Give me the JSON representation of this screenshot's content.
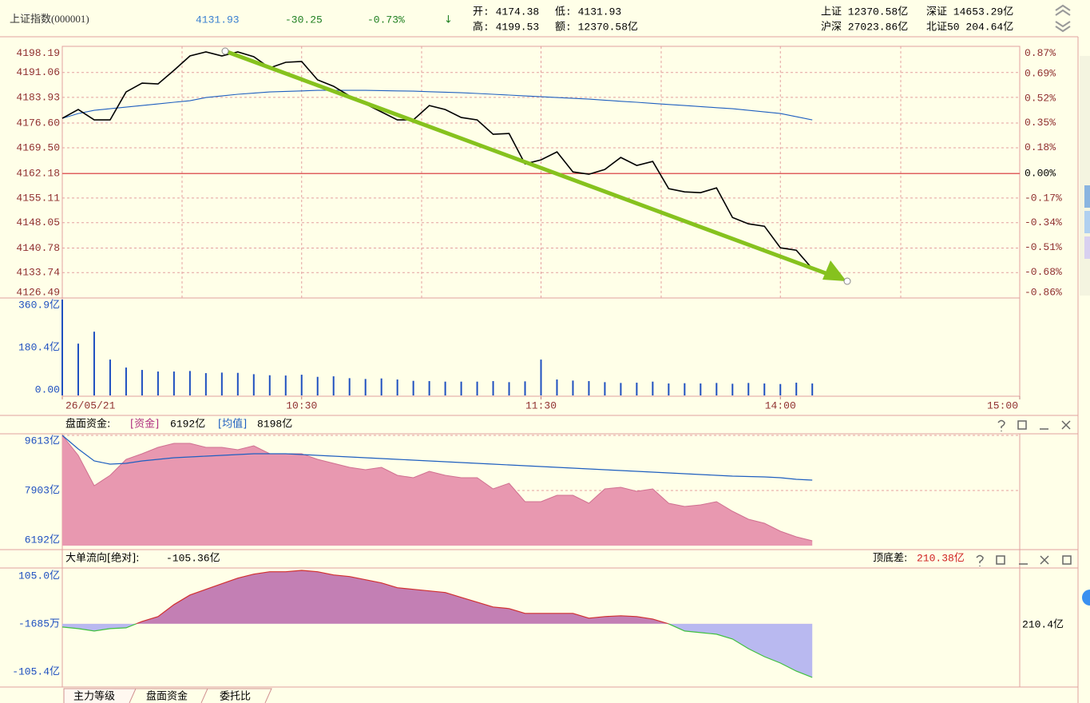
{
  "header": {
    "title": "上证指数(000001)",
    "price": "4131.93",
    "change": "-30.25",
    "change_pct": "-0.73%",
    "arrow": "↓",
    "open": "开: 4174.38",
    "low": "低: 4131.93",
    "high": "高: 4199.53",
    "amount": "额: 12370.58亿"
  },
  "market": [
    "上证 12370.58亿",
    "深证 14653.29亿",
    "沪深 27023.86亿",
    "北证50 204.64亿"
  ],
  "chart_data": [
    {
      "type": "line",
      "x": [
        "09:30",
        "09:34",
        "09:38",
        "09:42",
        "09:46",
        "09:50",
        "09:54",
        "09:58",
        "10:02",
        "10:06",
        "10:10",
        "10:14",
        "10:18",
        "10:22",
        "10:26",
        "10:30",
        "10:34",
        "10:38",
        "10:42",
        "10:46",
        "10:50",
        "10:54",
        "10:58",
        "11:02",
        "11:06",
        "11:10",
        "11:14",
        "11:18",
        "11:22",
        "11:26",
        "13:00",
        "13:04",
        "13:08",
        "13:12",
        "13:16",
        "13:20",
        "13:24",
        "13:28",
        "13:32",
        "13:36",
        "13:40",
        "13:44",
        "13:48",
        "13:52",
        "13:56",
        "14:00",
        "14:04",
        "14:08"
      ],
      "series": [
        {
          "color": "#000000",
          "values": [
            4177.95,
            4180.47,
            4177.49,
            4177.49,
            4185.5,
            4188.02,
            4187.79,
            4191.69,
            4195.81,
            4196.95,
            4195.81,
            4196.95,
            4195.58,
            4192.37,
            4193.98,
            4194.21,
            4188.94,
            4187.11,
            4184.36,
            4182.07,
            4179.78,
            4177.49,
            4177.49,
            4181.61,
            4180.47,
            4178.18,
            4177.49,
            4173.37,
            4173.6,
            4164.89,
            4166.04,
            4168.33,
            4162.6,
            4161.92,
            4163.29,
            4166.73,
            4164.44,
            4165.58,
            4157.79,
            4156.88,
            4156.65,
            4158.02,
            4149.55,
            4147.72,
            4147.03,
            4140.85,
            4140.16,
            4134.89
          ]
        },
        {
          "color": "#1f5fc0",
          "values": [
            4177.95,
            4179.32,
            4180.24,
            4180.69,
            4181.15,
            4181.61,
            4182.07,
            4182.53,
            4182.98,
            4183.9,
            4184.36,
            4184.82,
            4185.16,
            4185.5,
            4185.66,
            4185.8,
            4185.96,
            4185.96,
            4185.96,
            4185.96,
            4185.89,
            4185.8,
            4185.73,
            4185.57,
            4185.43,
            4185.27,
            4185.05,
            4184.82,
            4184.59,
            4184.36,
            4184.13,
            4183.9,
            4183.67,
            4183.44,
            4183.14,
            4182.82,
            4182.53,
            4182.23,
            4181.91,
            4181.61,
            4181.31,
            4180.99,
            4180.69,
            4180.24,
            4179.78,
            4179.32,
            4178.4,
            4177.49
          ]
        }
      ],
      "ylim": [
        4126.49,
        4198.19
      ],
      "yticks": [
        4198.19,
        4191.06,
        4183.93,
        {
          "value": 4176.6,
          "label": "4176.60"
        },
        {
          "value": 4169.5,
          "label": "4169.50"
        },
        4162.18,
        4155.11,
        4148.05,
        4140.78,
        4133.74,
        4126.49
      ],
      "y2lim": [
        -0.86,
        0.87
      ],
      "y2ticks": [
        {
          "value": 0.87,
          "label": "0.87%"
        },
        {
          "value": 0.69,
          "label": "0.69%"
        },
        {
          "value": 0.52,
          "label": "0.52%"
        },
        {
          "value": 0.35,
          "label": "0.35%"
        },
        {
          "value": 0.18,
          "label": "0.18%"
        },
        {
          "value": 0,
          "label": "0.00%"
        },
        {
          "value": -0.17,
          "label": "-0.17%"
        },
        {
          "value": -0.34,
          "label": "-0.34%"
        },
        {
          "value": -0.51,
          "label": "-0.51%"
        },
        {
          "value": -0.68,
          "label": "-0.68%"
        },
        {
          "value": -0.86,
          "label": "-0.86%"
        }
      ],
      "xticks": [
        {
          "value": "09:30",
          "label": "26/05/21"
        },
        "10:30",
        "11:30",
        "14:00",
        "15:00"
      ],
      "grid": true
    },
    {
      "type": "bar",
      "color": "#1f50c0",
      "values": [
        360.9,
        195,
        240,
        135,
        105,
        96,
        90,
        90,
        92,
        84,
        86,
        85,
        80,
        76,
        75,
        78,
        70,
        72,
        65,
        62,
        64,
        60,
        55,
        54,
        52,
        52,
        52,
        54,
        50,
        53,
        135,
        60,
        56,
        54,
        50,
        47,
        48,
        52,
        45,
        46,
        45,
        47,
        44,
        47,
        45,
        43,
        48,
        45
      ],
      "ylim": [
        0,
        360.9
      ],
      "yticks": [
        {
          "value": 360.9,
          "label": "360.9亿"
        },
        {
          "value": 180.4,
          "label": "180.4亿"
        },
        {
          "value": 0,
          "label": "0.00"
        }
      ]
    },
    {
      "type": "area",
      "title": "盘面资金:",
      "series": [
        {
          "name": "[资金]",
          "value_label": "6192亿",
          "color": "#e898b0",
          "values": [
            9613,
            8993,
            8051,
            8373,
            8869,
            9043,
            9241,
            9365,
            9365,
            9241,
            9241,
            9167,
            9291,
            9043,
            9043,
            9043,
            8869,
            8745,
            8621,
            8547,
            8621,
            8373,
            8299,
            8497,
            8373,
            8299,
            8299,
            7952,
            8126,
            7555,
            7555,
            7754,
            7754,
            7506,
            7952,
            8002,
            7878,
            7952,
            7506,
            7407,
            7456,
            7555,
            7258,
            7010,
            6886,
            6638,
            6465,
            6341
          ]
        },
        {
          "name": "[均值]",
          "value_label": "8198亿",
          "color": "#1f5fc0",
          "values": [
            9613,
            9192,
            8820,
            8721,
            8745,
            8820,
            8869,
            8919,
            8944,
            8968,
            8993,
            9018,
            9043,
            9043,
            9043,
            9018,
            8993,
            8968,
            8944,
            8919,
            8894,
            8869,
            8845,
            8820,
            8795,
            8770,
            8745,
            8721,
            8696,
            8671,
            8646,
            8621,
            8597,
            8572,
            8547,
            8522,
            8497,
            8473,
            8448,
            8423,
            8398,
            8373,
            8349,
            8336,
            8324,
            8299,
            8250,
            8225
          ]
        }
      ],
      "ylim": [
        6192,
        9613
      ],
      "yticks": [
        {
          "value": 9613,
          "label": "9613亿"
        },
        {
          "value": 7903,
          "label": "7903亿"
        },
        {
          "value": 6192,
          "label": "6192亿"
        }
      ]
    },
    {
      "type": "area",
      "title": "大单流向[绝对]:",
      "value_label": "-105.36亿",
      "spread_title": "顶底差:",
      "spread_label": "210.38亿",
      "range_label": "210.4亿",
      "color_up": "#c37fb4",
      "color_down": "#b9b9f0",
      "line_up": "#d03030",
      "line_down": "#40c040",
      "values": [
        -6.3,
        -9.45,
        -14.18,
        -9.45,
        -7.88,
        4.73,
        14.18,
        37.8,
        56.7,
        67.73,
        78.75,
        89.78,
        97.65,
        102.38,
        102.38,
        105.0,
        102.38,
        96.08,
        92.93,
        86.63,
        80.33,
        70.88,
        67.73,
        64.58,
        61.43,
        51.98,
        42.53,
        33.08,
        29.93,
        20.48,
        20.48,
        20.48,
        20.48,
        11.03,
        14.18,
        15.75,
        14.18,
        9.45,
        0,
        -14.18,
        -17.33,
        -20.48,
        -29.93,
        -48.83,
        -64.58,
        -77.18,
        -92.93,
        -105.36
      ],
      "ylim": [
        -105.4,
        105.0
      ],
      "yticks": [
        {
          "value": 105.0,
          "label": "105.0亿"
        },
        {
          "value": -0.1685,
          "label": "-1685万"
        },
        {
          "value": -105.4,
          "label": "-105.4亿"
        }
      ]
    }
  ],
  "tabs": [
    "主力等级",
    "盘面资金",
    "委托比"
  ]
}
